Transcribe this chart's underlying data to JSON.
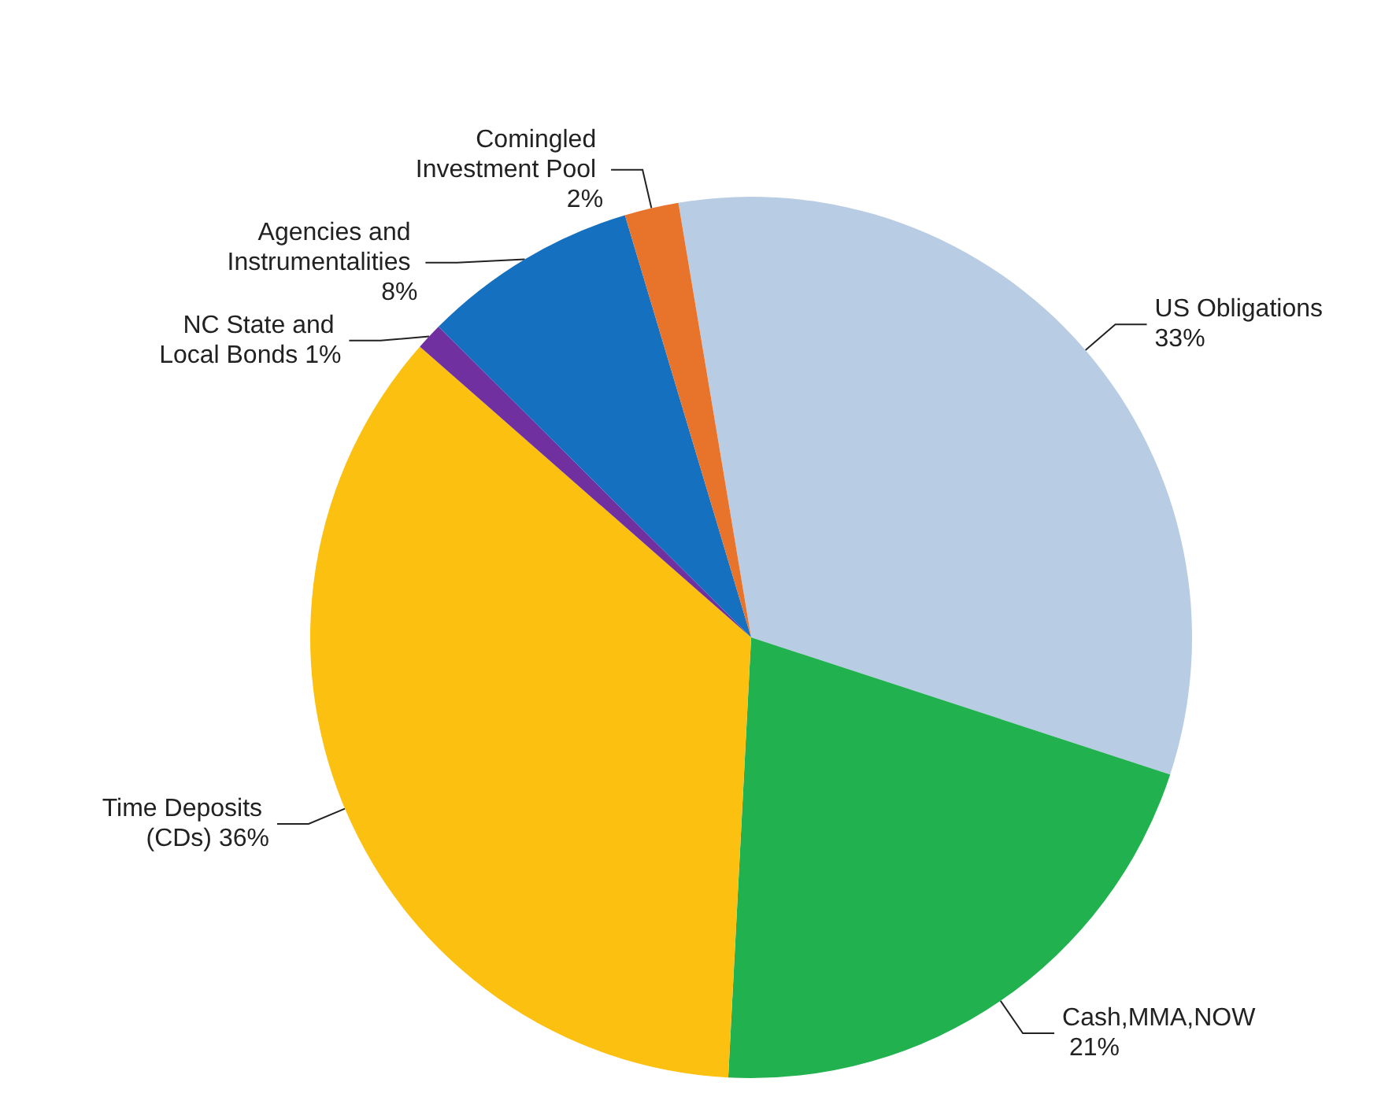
{
  "chart_data": {
    "type": "pie",
    "categories": [
      "US Obligations",
      "Cash,MMA,NOW",
      "Time Deposits (CDs)",
      "NC State and Local Bonds",
      "Agencies and Instrumentalities",
      "Comingled Investment Pool"
    ],
    "values": [
      33,
      21,
      36,
      1,
      8,
      2
    ],
    "colors": [
      "#b8cce4",
      "#21b14f",
      "#fbc010",
      "#7030a0",
      "#1570bf",
      "#e8732a"
    ],
    "value_labels": [
      "33%",
      "21%",
      "36%",
      "1%",
      "8%",
      "2%"
    ],
    "legend": false
  }
}
